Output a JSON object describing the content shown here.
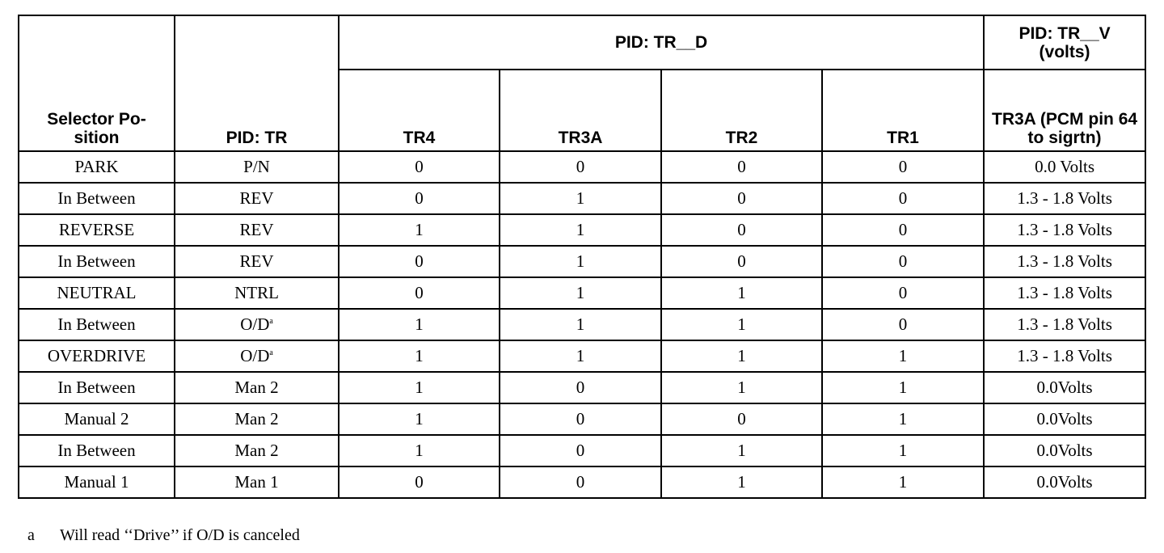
{
  "table": {
    "header_top": {
      "group": "PID: TR__D",
      "volts": "PID: TR__V\n(volts)"
    },
    "columns": [
      "Selector Po-\nsition",
      "PID: TR",
      "TR4",
      "TR3A",
      "TR2",
      "TR1",
      "TR3A (PCM pin 64 to sigrtn)"
    ],
    "rows": [
      [
        "PARK",
        "P/N",
        0,
        0,
        0,
        0,
        "0.0 Volts"
      ],
      [
        "In Between",
        "REV",
        0,
        1,
        0,
        0,
        "1.3 - 1.8 Volts"
      ],
      [
        "REVERSE",
        "REV",
        1,
        1,
        0,
        0,
        "1.3 - 1.8 Volts"
      ],
      [
        "In Between",
        "REV",
        0,
        1,
        0,
        0,
        "1.3 - 1.8 Volts"
      ],
      [
        "NEUTRAL",
        "NTRL",
        0,
        1,
        1,
        0,
        "1.3 - 1.8 Volts"
      ],
      [
        "In Between",
        {
          "text": "O/D",
          "sup": "a"
        },
        1,
        1,
        1,
        0,
        "1.3 - 1.8 Volts"
      ],
      [
        "OVERDRIVE",
        {
          "text": "O/D",
          "sup": "a"
        },
        1,
        1,
        1,
        1,
        "1.3 - 1.8 Volts"
      ],
      [
        "In Between",
        "Man 2",
        1,
        0,
        1,
        1,
        "0.0Volts"
      ],
      [
        "Manual 2",
        "Man 2",
        1,
        0,
        0,
        1,
        "0.0Volts"
      ],
      [
        "In Between",
        "Man 2",
        1,
        0,
        1,
        1,
        "0.0Volts"
      ],
      [
        "Manual 1",
        "Man 1",
        0,
        0,
        1,
        1,
        "0.0Volts"
      ]
    ]
  },
  "footnote": {
    "marker": "a",
    "text": "Will read ‘‘Drive’’ if O/D is canceled"
  }
}
